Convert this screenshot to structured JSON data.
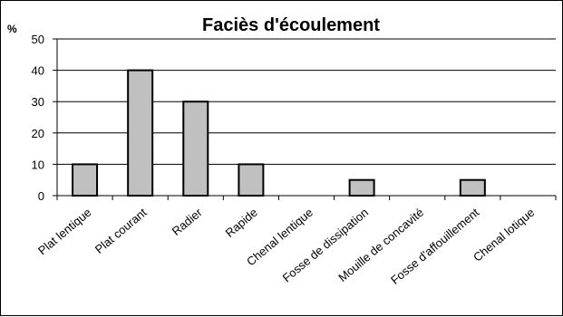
{
  "chart_data": {
    "type": "bar",
    "title": "Faciès d'écoulement",
    "ylabel": "%",
    "xlabel": "",
    "categories": [
      "Plat lentique",
      "Plat courant",
      "Radier",
      "Rapide",
      "Chenal lentique",
      "Fosse de dissipation",
      "Mouille de concavité",
      "Fosse d'affouillement",
      "Chenal lotique"
    ],
    "values": [
      10,
      40,
      30,
      10,
      0,
      5,
      0,
      5,
      0
    ],
    "ylim": [
      0,
      50
    ],
    "yticks": [
      0,
      10,
      20,
      30,
      40,
      50
    ],
    "grid": true,
    "legend": "none",
    "colors": {
      "bar_fill": "#c0c0c0",
      "bar_stroke": "#000000",
      "grid": "#000000"
    }
  }
}
